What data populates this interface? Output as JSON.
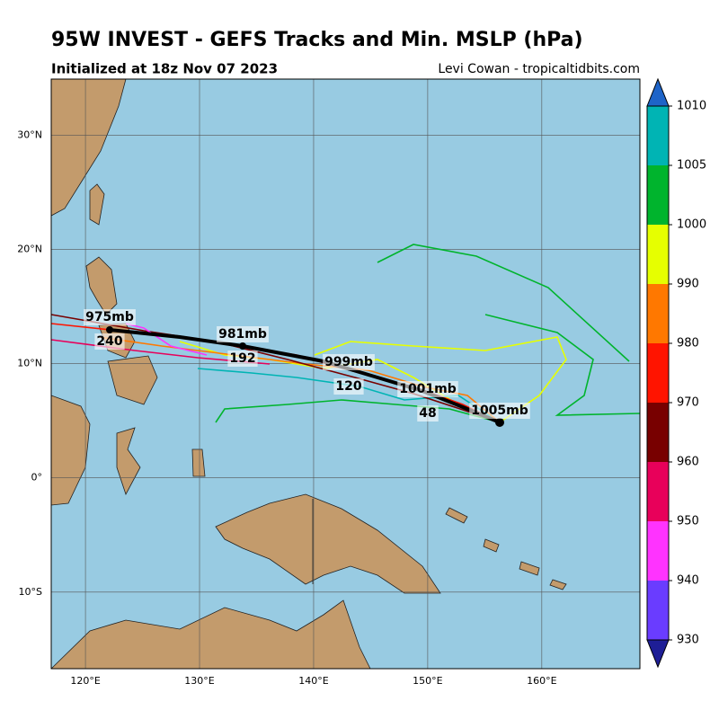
{
  "header": {
    "title": "95W INVEST - GEFS Tracks and Min. MSLP (hPa)",
    "subtitle": "Initialized at 18z Nov 07 2023",
    "credit": "Levi Cowan - tropicaltidbits.com"
  },
  "map": {
    "xlim": [
      117,
      168.6
    ],
    "ylim": [
      -16.7,
      34.9
    ],
    "xticks": [
      {
        "value": 120,
        "label": "120°E"
      },
      {
        "value": 130,
        "label": "130°E"
      },
      {
        "value": 140,
        "label": "140°E"
      },
      {
        "value": 150,
        "label": "150°E"
      },
      {
        "value": 160,
        "label": "160°E"
      }
    ],
    "yticks": [
      {
        "value": -10,
        "label": "10°S"
      },
      {
        "value": 0,
        "label": "0°"
      },
      {
        "value": 10,
        "label": "10°N"
      },
      {
        "value": 20,
        "label": "20°N"
      },
      {
        "value": 30,
        "label": "30°N"
      }
    ],
    "annotations": [
      "975mb",
      "240",
      "981mb",
      "192",
      "999mb",
      "120",
      "1001mb",
      "48",
      "1005mb"
    ]
  },
  "colorbar": {
    "ticks": [
      930,
      940,
      950,
      960,
      970,
      980,
      990,
      1000,
      1005,
      1010
    ],
    "colors": [
      "#6a3cff",
      "#ff33ff",
      "#e8005a",
      "#780000",
      "#ff1400",
      "#ff7800",
      "#e6ff00",
      "#00b42d",
      "#00b4b4"
    ],
    "under": "#1e1e96",
    "over": "#1e64c8"
  }
}
